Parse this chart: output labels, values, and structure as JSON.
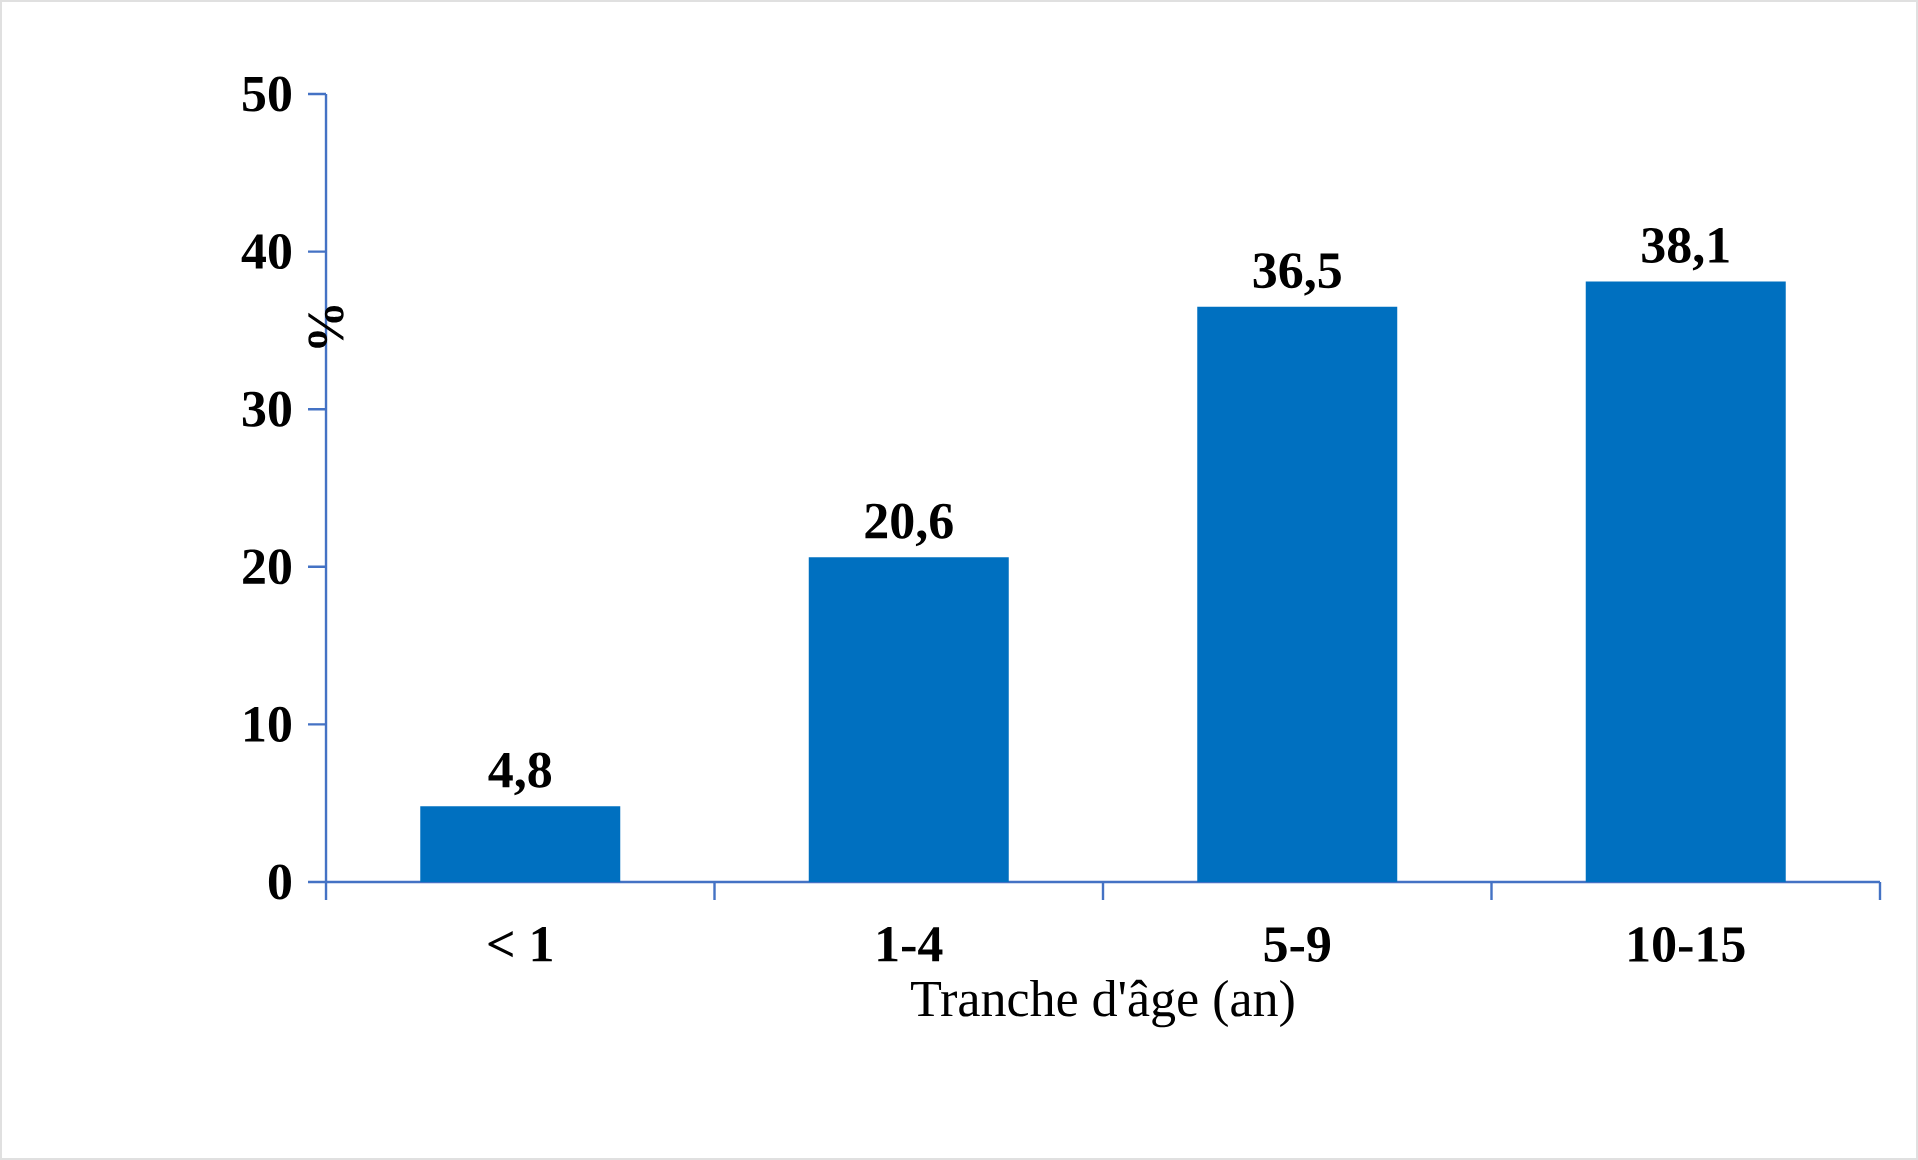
{
  "chart_data": {
    "type": "bar",
    "categories": [
      "< 1",
      "1-4",
      "5-9",
      "10-15"
    ],
    "values": [
      4.8,
      20.6,
      36.5,
      38.1
    ],
    "value_labels": [
      "4,8",
      "20,6",
      "36,5",
      "38,1"
    ],
    "color": "#0070c0",
    "xlabel": "Tranche d'âge (an)",
    "ylabel": "%",
    "ylim": [
      0,
      50
    ],
    "yticks": [
      0,
      10,
      20,
      30,
      40,
      50
    ],
    "grid": false
  }
}
